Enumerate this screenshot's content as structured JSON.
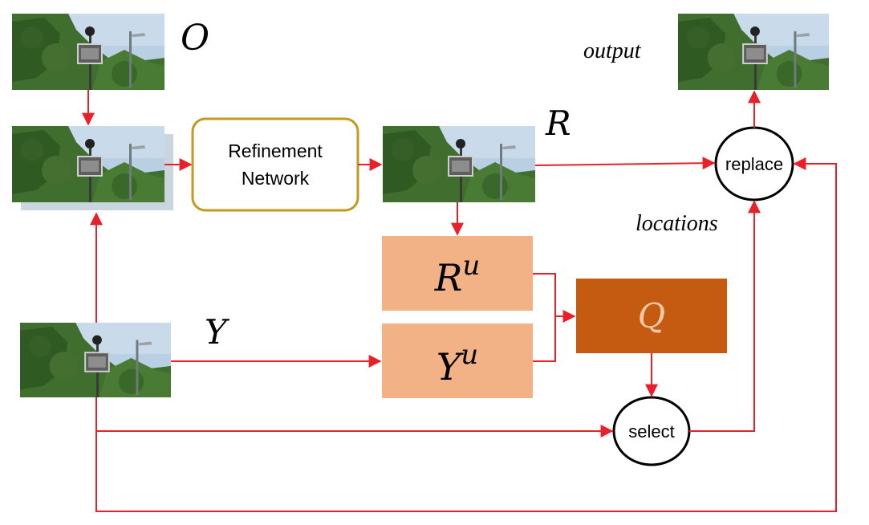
{
  "labels": {
    "O": "O",
    "R": "R",
    "Y": "Y",
    "output": "output",
    "locations": "locations"
  },
  "nodes": {
    "refinement": [
      "Refinement",
      "Network"
    ],
    "ru_base": "R",
    "ru_sup": "u",
    "yu_base": "Y",
    "yu_sup": "u",
    "q": "Q",
    "select": "select",
    "replace": "replace"
  },
  "colors": {
    "arrow": "#e8202a",
    "refine_border": "#c29a1c",
    "feature_box": "#f3b186",
    "q_box": "#c55a11",
    "sky": "#b9cfe3",
    "foliage": "#3f6e2e"
  },
  "icons": {
    "image": "street-scene-thumbnail"
  }
}
